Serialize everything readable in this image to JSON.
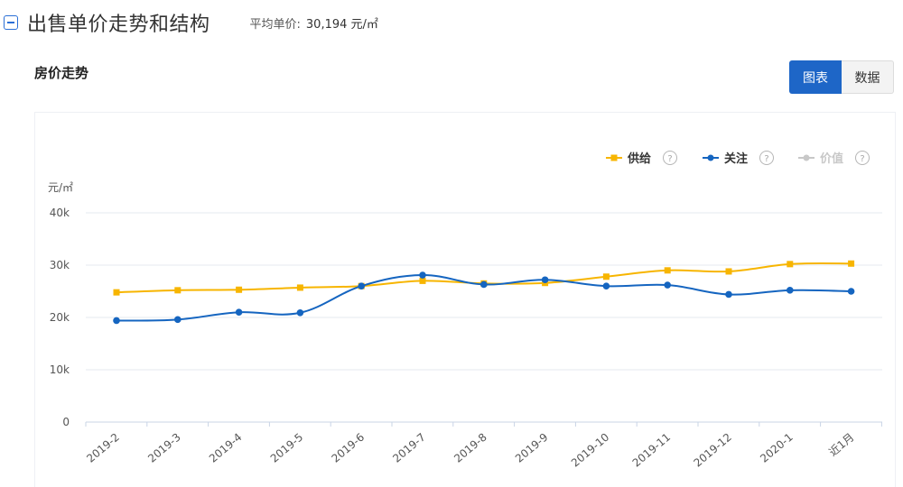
{
  "header": {
    "title": "出售单价走势和结构",
    "avg_label": "平均单价:",
    "avg_value": "30,194 元/㎡"
  },
  "section": {
    "title": "房价走势"
  },
  "toggle": {
    "chart_label": "图表",
    "data_label": "数据"
  },
  "legend": {
    "items": [
      {
        "label": "供给",
        "help": "?",
        "color": "#f7b500",
        "marker": "square",
        "active": true
      },
      {
        "label": "关注",
        "help": "?",
        "color": "#1565c0",
        "marker": "circle",
        "active": true
      },
      {
        "label": "价值",
        "help": "?",
        "color": "#c8c8c8",
        "marker": "circle",
        "active": false
      }
    ]
  },
  "chart_data": {
    "type": "line",
    "ylabel": "元/㎡",
    "ylim": [
      0,
      40000
    ],
    "yticks": [
      0,
      10000,
      20000,
      30000,
      40000
    ],
    "ytick_labels": [
      "0",
      "10k",
      "20k",
      "30k",
      "40k"
    ],
    "categories": [
      "2019-2",
      "2019-3",
      "2019-4",
      "2019-5",
      "2019-6",
      "2019-7",
      "2019-8",
      "2019-9",
      "2019-10",
      "2019-11",
      "2019-12",
      "2020-1",
      "近1月"
    ],
    "series": [
      {
        "name": "供给",
        "color": "#f7b500",
        "marker": "square",
        "values": [
          24800,
          25200,
          25300,
          25700,
          26000,
          27000,
          26500,
          26600,
          27800,
          29000,
          28800,
          30200,
          30300
        ]
      },
      {
        "name": "关注",
        "color": "#1565c0",
        "marker": "circle",
        "values": [
          19400,
          19600,
          21000,
          20900,
          26000,
          28100,
          26300,
          27200,
          26000,
          26200,
          24400,
          25200,
          25000
        ]
      }
    ],
    "grid": true,
    "legend_position": "top-right"
  }
}
